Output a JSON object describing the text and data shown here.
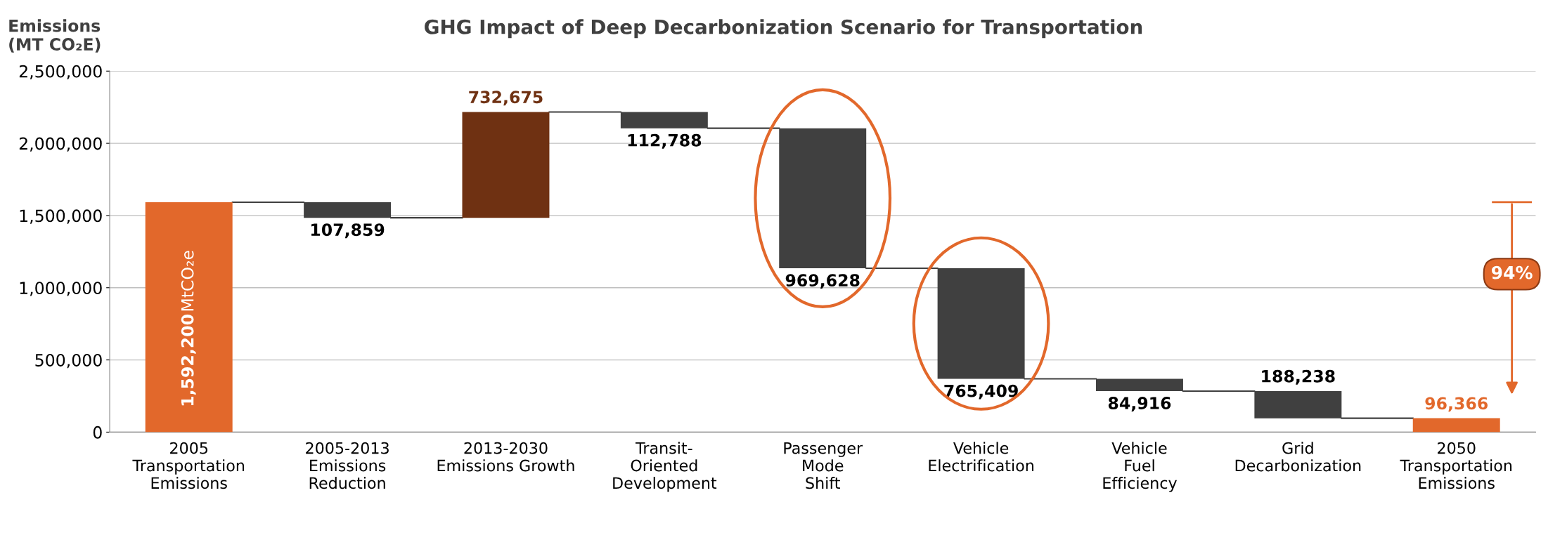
{
  "chart_data": {
    "type": "bar",
    "title": "GHG Impact of Deep Decarbonization Scenario for Transportation",
    "ylabel": "Emissions\n(MT CO₂E)",
    "categories": [
      "2005\nTransportation\nEmissions",
      "2005-2013\nEmissions\nReduction",
      "2013-2030\nEmissions Growth",
      "Transit-\nOriented\nDevelopment",
      "Passenger\nMode\nShift",
      "Vehicle\nElectrification",
      "Vehicle\nFuel\nEfficiency",
      "Grid\nDecarbonization",
      "2050\nTransportation\nEmissions"
    ],
    "values": [
      1592200,
      107859,
      732675,
      112788,
      969628,
      765409,
      84916,
      188238,
      96366
    ],
    "base": [
      0,
      1484341,
      1484341,
      2104228,
      1134600,
      369191,
      284275,
      96037,
      0
    ],
    "colors": [
      "#e2682b",
      "#404040",
      "#6f3112",
      "#404040",
      "#404040",
      "#404040",
      "#404040",
      "#404040",
      "#e2682b"
    ],
    "value_labels": [
      "1,592,200",
      "107,859",
      "732,675",
      "112,788",
      "969,628",
      "765,409",
      "84,916",
      "188,238",
      "96,366"
    ],
    "ylim": [
      0,
      2500000
    ],
    "yticks": [
      {
        "value": 0,
        "label": "0"
      },
      {
        "value": 500000,
        "label": "500,000"
      },
      {
        "value": 1000000,
        "label": "1,000,000"
      },
      {
        "value": 1500000,
        "label": "1,500,000"
      },
      {
        "value": 2000000,
        "label": "2,000,000"
      },
      {
        "value": 2500000,
        "label": "2,500,000"
      }
    ],
    "grid": "y",
    "annotations": [
      "MtCO₂e",
      "94%"
    ]
  }
}
